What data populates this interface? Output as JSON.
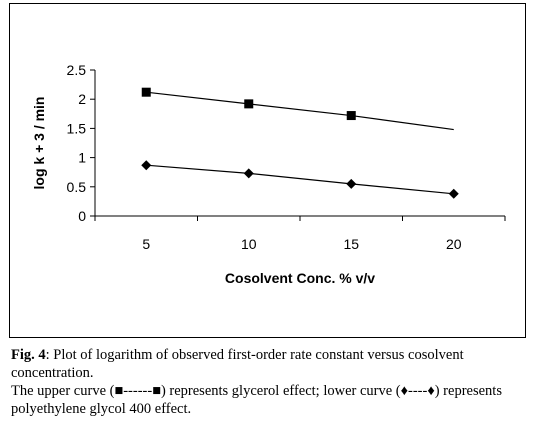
{
  "chart_data": {
    "type": "line",
    "x": [
      5,
      10,
      15,
      20
    ],
    "xlabel": "Cosolvent Conc. % v/v",
    "ylabel": "log k + 3 / min",
    "xticks": [
      "5",
      "10",
      "15",
      "20"
    ],
    "yticks": [
      "0",
      "0.5",
      "1",
      "1.5",
      "2",
      "2.5"
    ],
    "ylim": [
      0,
      2.5
    ],
    "grid": false,
    "legend": "none",
    "series": [
      {
        "values": [
          2.12,
          1.92,
          1.72,
          1.48
        ],
        "marker": "square",
        "markers_at": [
          5,
          10,
          15
        ],
        "color": "#000000"
      },
      {
        "values": [
          0.87,
          0.73,
          0.55,
          0.38
        ],
        "marker": "diamond",
        "markers_at": [
          5,
          10,
          15,
          20
        ],
        "color": "#000000"
      }
    ]
  },
  "caption": {
    "fig_label": "Fig. 4",
    "line1": ": Plot of logarithm of observed first-order rate constant versus cosolvent concentration.",
    "line2": "The upper curve (■------■) represents glycerol effect; lower curve (♦----♦) represents polyethylene glycol 400 effect."
  }
}
